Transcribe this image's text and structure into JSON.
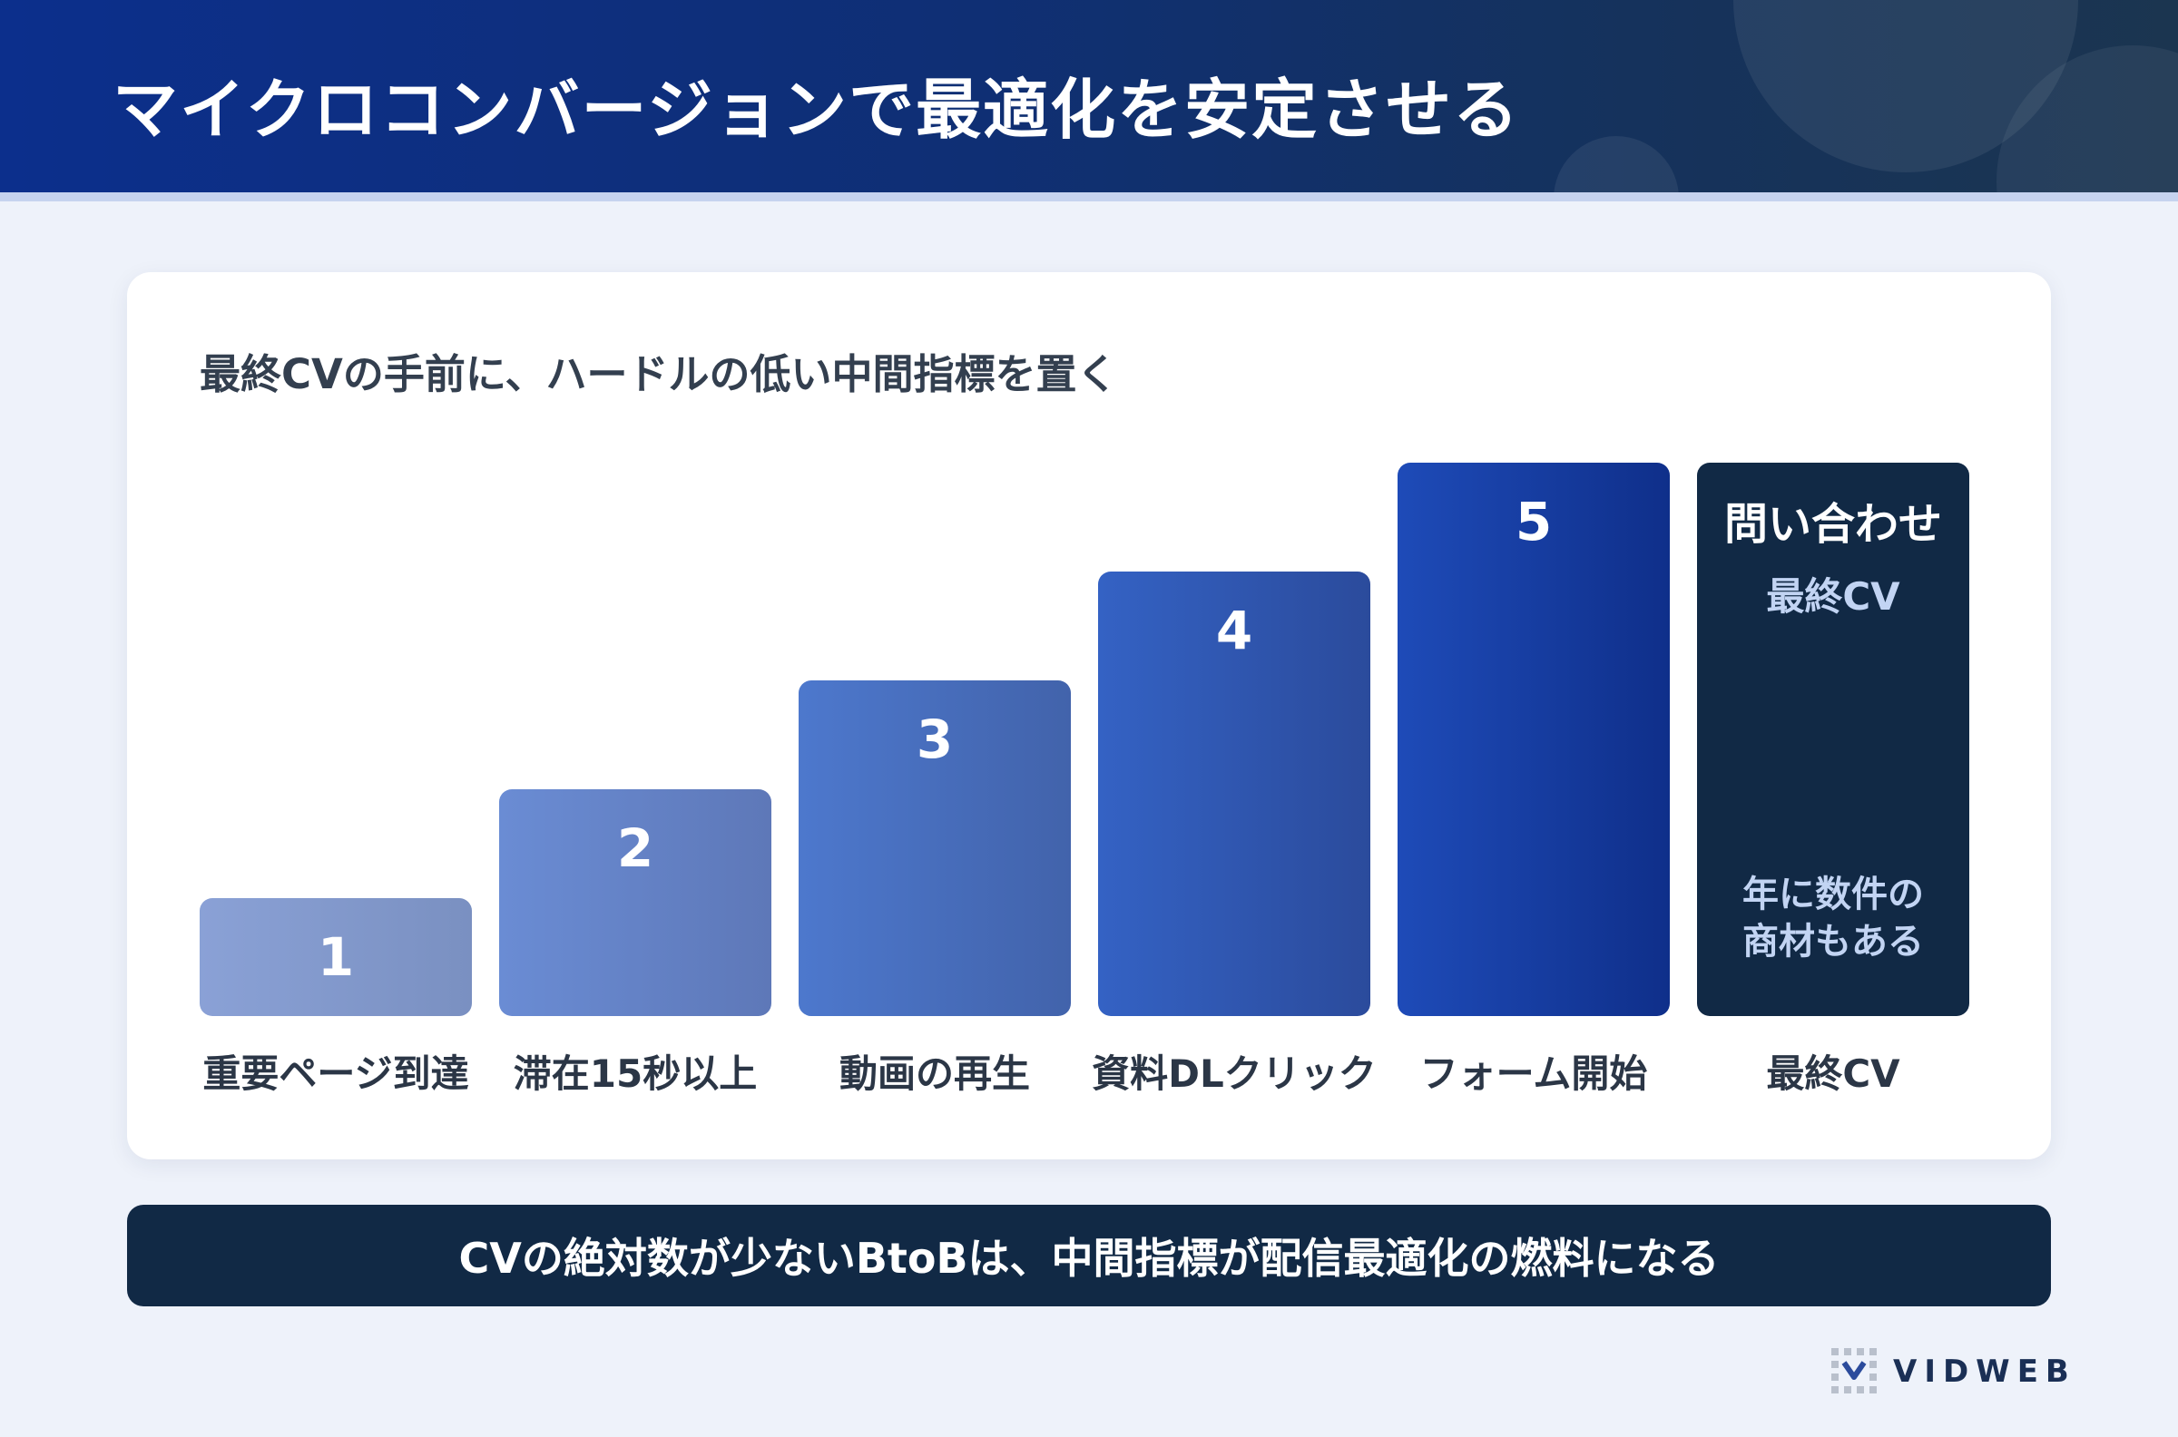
{
  "header": {
    "title": "マイクロコンバージョンで最適化を安定させる"
  },
  "card": {
    "subtitle": "最終CVの手前に、ハードルの低い中間指標を置く"
  },
  "steps": [
    {
      "number": "1",
      "label": "重要ページ到達",
      "level": 1
    },
    {
      "number": "2",
      "label": "滞在15秒以上",
      "level": 2
    },
    {
      "number": "3",
      "label": "動画の再生",
      "level": 3
    },
    {
      "number": "4",
      "label": "資料DLクリック",
      "level": 4
    },
    {
      "number": "5",
      "label": "フォーム開始",
      "level": 5
    }
  ],
  "final": {
    "name": "問い合わせ",
    "sub": "最終CV",
    "note_line1": "年に数件の",
    "note_line2": "商材もある",
    "label": "最終CV",
    "level": 5
  },
  "banner": {
    "text": "CVの絶対数が少ないBtoBは、中間指標が配信最適化の燃料になる"
  },
  "brand": {
    "name": "VIDWEB"
  },
  "colors": {
    "header": "#0c2f8c",
    "dark_navy": "#112945",
    "step1": "#7f95c9",
    "step5": "#1d43a8"
  }
}
